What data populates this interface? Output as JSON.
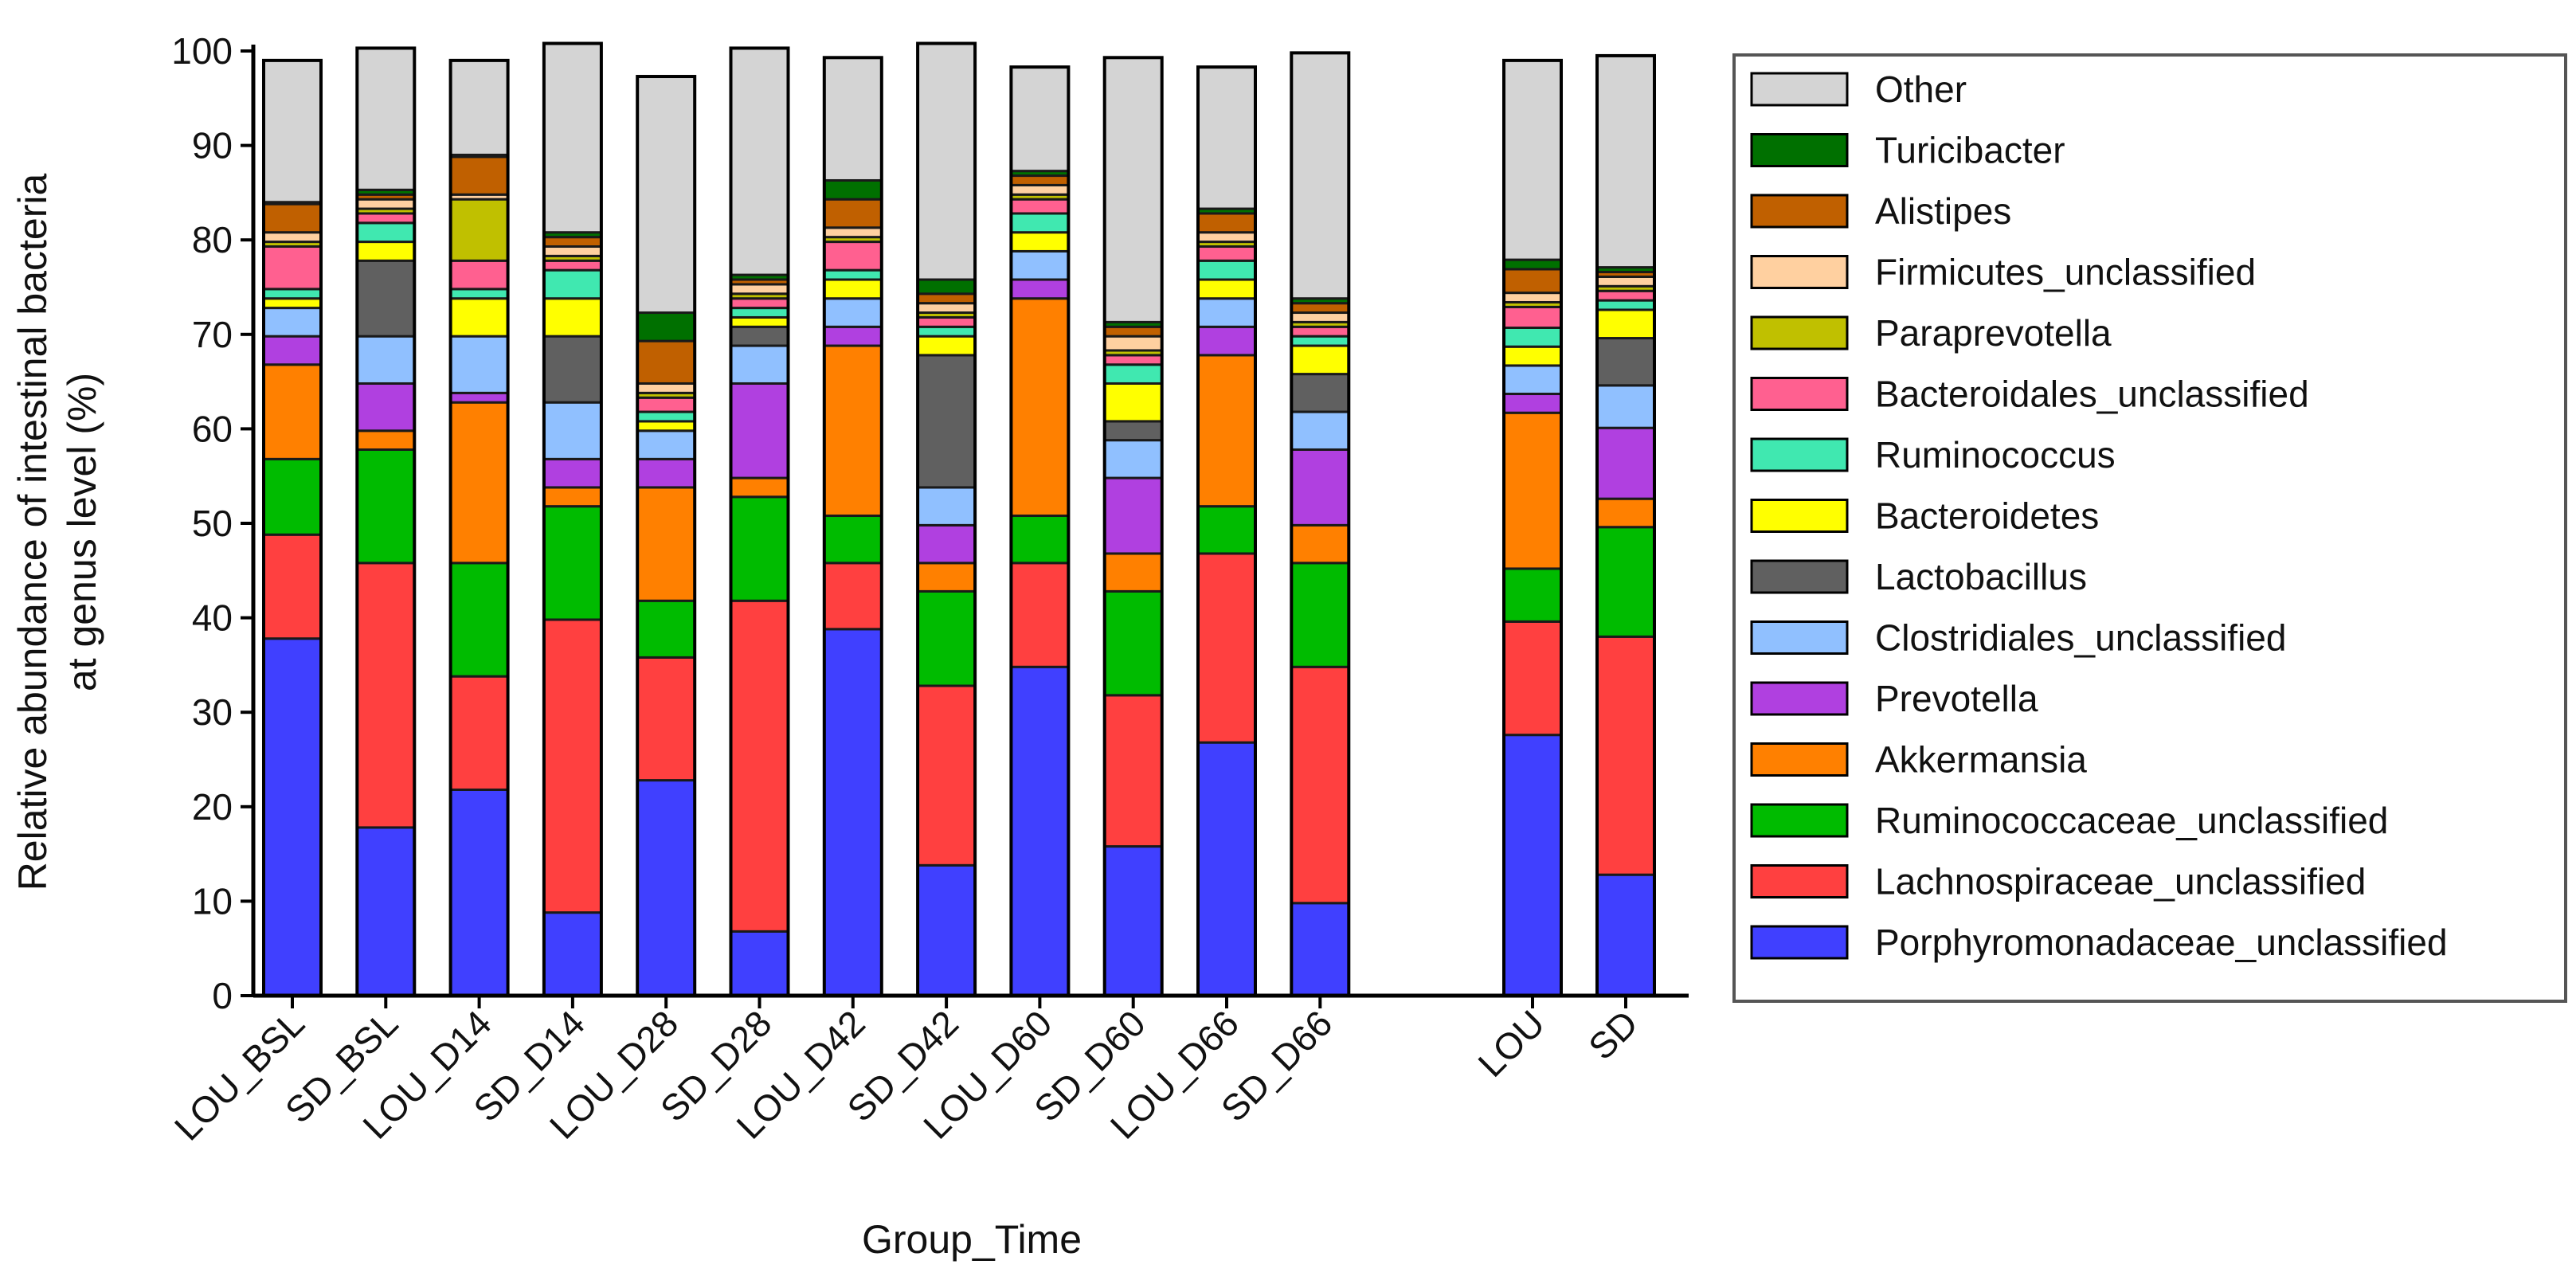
{
  "chart_data": {
    "type": "stacked-bar",
    "title": "",
    "xlabel": "Group_Time",
    "ylabel_lines": [
      "Relative abundance of intestinal bacteria",
      "at genus level (%)"
    ],
    "ylim": [
      0,
      100
    ],
    "yticks": [
      0,
      10,
      20,
      30,
      40,
      50,
      60,
      70,
      80,
      90,
      100
    ],
    "legend_position": "right",
    "categories": [
      "LOU_BSL",
      "SD_BSL",
      "LOU_D14",
      "SD_D14",
      "LOU_D28",
      "SD_D28",
      "LOU_D42",
      "SD_D42",
      "LOU_D60",
      "SD_D60",
      "LOU_D66",
      "SD_D66",
      "LOU",
      "SD"
    ],
    "series": [
      {
        "name": "Porphyromonadaceae_unclassified",
        "color": "#4040ff",
        "values": [
          37.8,
          17.8,
          21.8,
          8.8,
          22.8,
          6.8,
          38.8,
          13.8,
          34.8,
          15.8,
          26.8,
          9.8,
          27.6,
          12.8
        ]
      },
      {
        "name": "Lachnospiraceae_unclassified",
        "color": "#ff4040",
        "values": [
          11,
          28,
          12,
          31,
          13,
          35,
          7,
          19,
          11,
          16,
          20,
          25,
          12,
          25.2
        ]
      },
      {
        "name": "Ruminococcaceae_unclassified",
        "color": "#00bb00",
        "values": [
          8,
          12,
          12,
          12,
          6,
          11,
          5,
          10,
          5,
          11,
          5,
          11,
          5.6,
          11.6
        ]
      },
      {
        "name": "Akkermansia",
        "color": "#ff8000",
        "values": [
          10,
          2,
          17,
          2,
          12,
          2,
          18,
          3,
          23,
          4,
          16,
          4,
          16.5,
          3
        ]
      },
      {
        "name": "Prevotella",
        "color": "#b040e0",
        "values": [
          3,
          5,
          1,
          3,
          3,
          10,
          2,
          4,
          2,
          8,
          3,
          8,
          2,
          7.5
        ]
      },
      {
        "name": "Clostridiales_unclassified",
        "color": "#90c0ff",
        "values": [
          3,
          5,
          6,
          6,
          3,
          4,
          3,
          4,
          3,
          4,
          3,
          4,
          3,
          4.5
        ]
      },
      {
        "name": "Lactobacillus",
        "color": "#606060",
        "values": [
          0,
          8,
          0,
          7,
          0,
          2,
          0,
          14,
          0,
          2,
          0,
          4,
          0,
          5
        ]
      },
      {
        "name": "Bacteroidetes",
        "color": "#ffff00",
        "values": [
          1,
          2,
          4,
          4,
          1,
          1,
          2,
          2,
          2,
          4,
          2,
          3,
          2,
          3
        ]
      },
      {
        "name": "Ruminococcus",
        "color": "#40e8b0",
        "values": [
          1,
          2,
          1,
          3,
          1,
          1,
          1,
          1,
          2,
          2,
          2,
          1,
          2,
          1
        ]
      },
      {
        "name": "Bacteroidales_unclassified",
        "color": "#ff6090",
        "values": [
          4.5,
          1,
          3,
          1,
          1.5,
          1,
          3,
          1,
          1.5,
          1,
          1.5,
          1,
          2.2,
          1
        ]
      },
      {
        "name": "Paraprevotella",
        "color": "#c0c000",
        "values": [
          0.5,
          0.5,
          6.5,
          0.5,
          0.5,
          0.5,
          0.5,
          0.5,
          0.5,
          0.5,
          0.5,
          0.5,
          0.5,
          0.5
        ]
      },
      {
        "name": "Firmicutes_unclassified",
        "color": "#ffd0a0",
        "values": [
          1,
          1,
          0.5,
          1,
          1,
          1,
          1,
          1,
          1,
          1.5,
          1,
          1,
          1,
          1
        ]
      },
      {
        "name": "Alistipes",
        "color": "#c06000",
        "values": [
          3,
          0.5,
          4,
          1,
          4.5,
          0.5,
          3,
          1,
          1,
          1,
          2,
          1,
          2.5,
          0.5
        ]
      },
      {
        "name": "Turicibacter",
        "color": "#007000",
        "values": [
          0.2,
          0.5,
          0.2,
          0.5,
          3,
          0.5,
          2,
          1.5,
          0.5,
          0.5,
          0.5,
          0.5,
          1,
          0.5
        ]
      },
      {
        "name": "Other",
        "color": "#d4d4d4",
        "values": [
          15,
          15,
          10,
          20,
          25,
          24,
          13,
          25,
          11,
          28,
          15,
          26,
          21.1,
          22.4
        ]
      }
    ]
  }
}
